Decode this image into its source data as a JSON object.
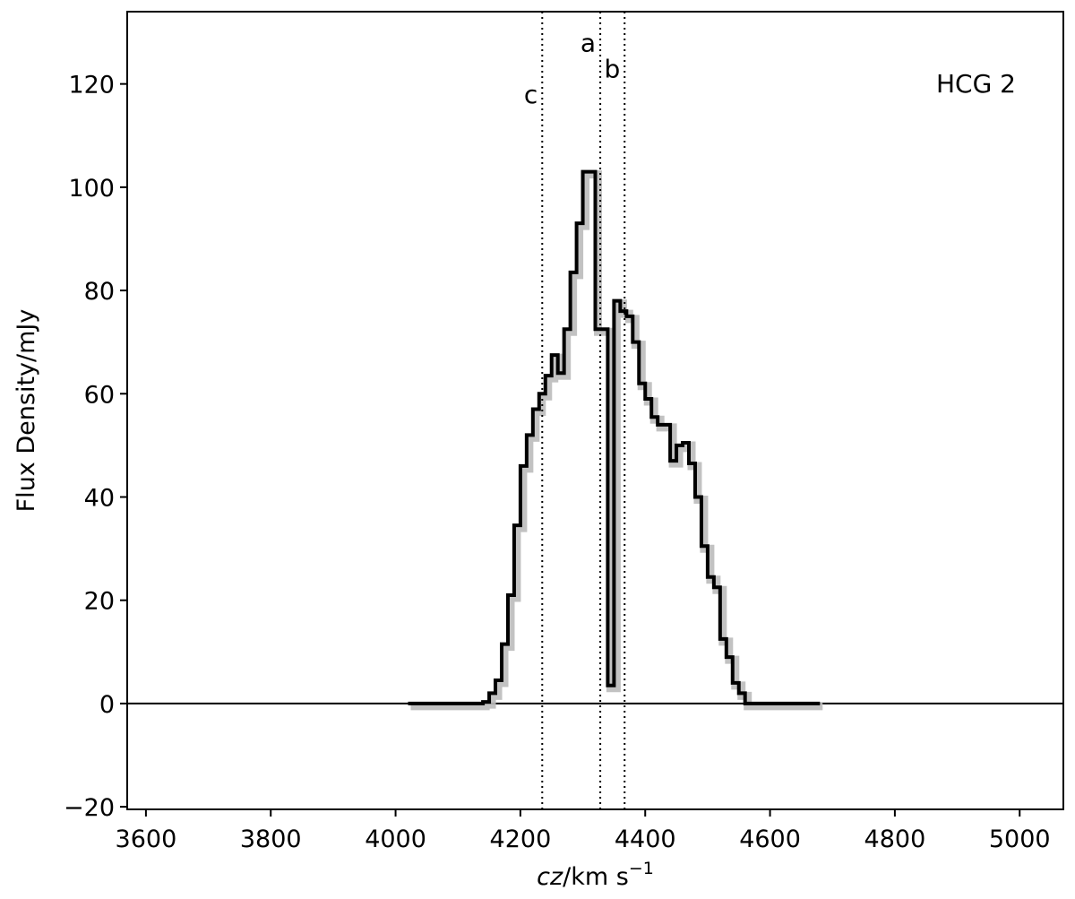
{
  "chart_data": {
    "type": "line",
    "title": "",
    "annotation": "HCG 2",
    "xlabel_prefix": "cz",
    "xlabel_mid": "/km s",
    "xlabel_sup": "−1",
    "ylabel": "Flux Density/mJy",
    "xlim": [
      3570,
      5070
    ],
    "ylim": [
      -20.5,
      134
    ],
    "xticks": [
      3600,
      3800,
      4000,
      4200,
      4400,
      4600,
      4800,
      5000
    ],
    "yticks": [
      -20,
      0,
      20,
      40,
      60,
      80,
      100,
      120
    ],
    "grid": false,
    "zero_line": 0,
    "markers": [
      {
        "label": "c",
        "x": 4235,
        "label_y": 118
      },
      {
        "label": "a",
        "x": 4328,
        "label_y": 128
      },
      {
        "label": "b",
        "x": 4367,
        "label_y": 123
      }
    ],
    "series": [
      {
        "style": "step",
        "color": "#000000",
        "band_color": "#bbbbbb",
        "x": [
          4020,
          4140,
          4150,
          4160,
          4170,
          4180,
          4190,
          4200,
          4210,
          4220,
          4230,
          4240,
          4250,
          4260,
          4270,
          4280,
          4290,
          4300,
          4310,
          4320,
          4330,
          4340,
          4350,
          4360,
          4370,
          4380,
          4390,
          4400,
          4410,
          4420,
          4430,
          4440,
          4450,
          4460,
          4470,
          4480,
          4490,
          4500,
          4510,
          4520,
          4530,
          4540,
          4550,
          4560,
          4570,
          4580,
          4680
        ],
        "y": [
          0,
          0.3,
          2,
          4.5,
          11.5,
          21,
          34.5,
          46,
          52,
          57,
          60,
          63.5,
          67.5,
          64,
          72.5,
          83.5,
          93,
          103,
          103,
          72.5,
          72.5,
          3.5,
          78,
          76,
          75,
          70,
          62,
          59,
          55.5,
          54,
          54,
          47,
          50,
          50.5,
          46.5,
          40,
          30.5,
          24.5,
          22.5,
          12.5,
          9,
          4,
          2,
          0,
          0,
          0,
          0
        ]
      }
    ]
  }
}
